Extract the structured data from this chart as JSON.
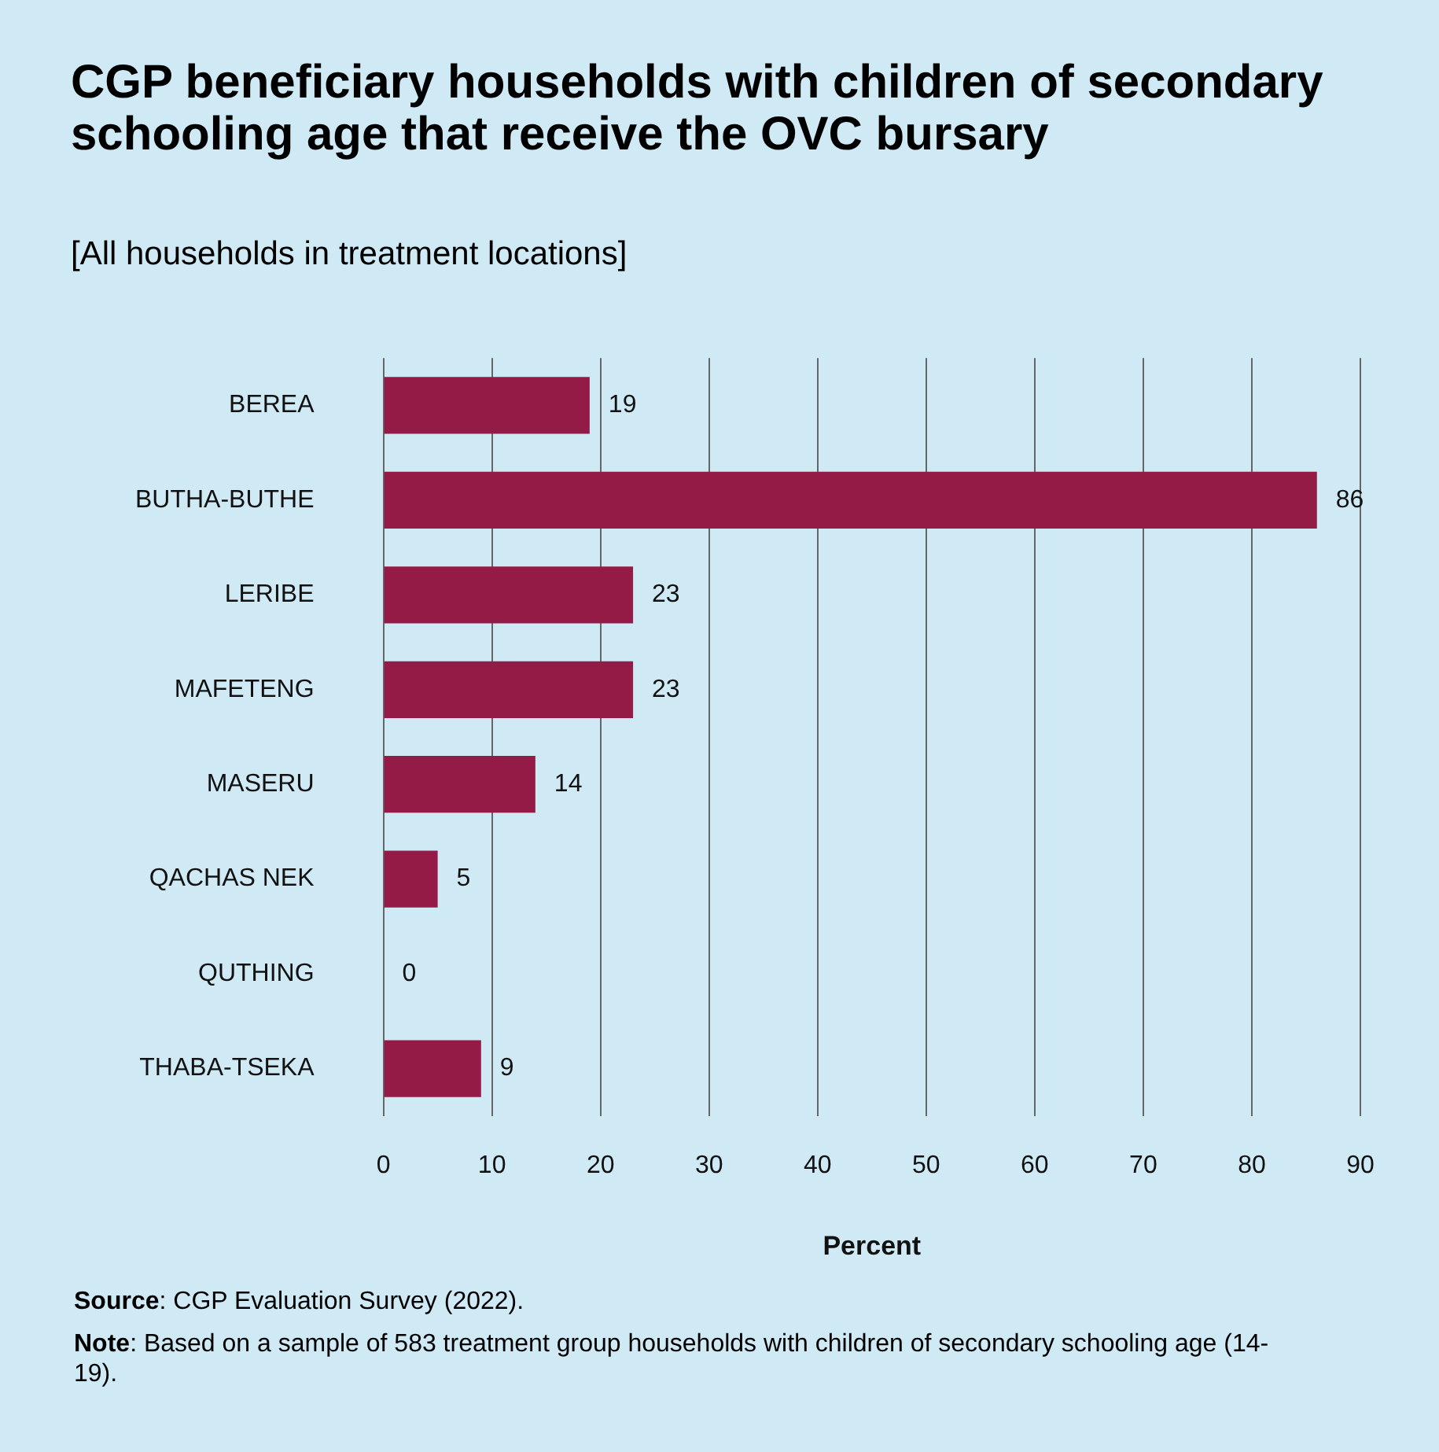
{
  "chart_data": {
    "type": "bar",
    "orientation": "horizontal",
    "title": "CGP beneficiary households with children of secondary schooling age that receive the OVC bursary",
    "subtitle": "[All households in treatment locations]",
    "categories": [
      "BEREA",
      "BUTHA-BUTHE",
      "LERIBE",
      "MAFETENG",
      "MASERU",
      "QACHAS NEK",
      "QUTHING",
      "THABA-TSEKA"
    ],
    "values": [
      19,
      86,
      23,
      23,
      14,
      5,
      0,
      9
    ],
    "color": "#951b47",
    "xlabel": "Percent",
    "xlim": [
      0,
      90
    ],
    "xticks": [
      0,
      10,
      20,
      30,
      40,
      50,
      60,
      70,
      80,
      90
    ],
    "grid": "x",
    "data_labels": true,
    "legend": false,
    "annotations": [
      "Source: CGP Evaluation Survey (2022).",
      "Note: Based on a sample of 583 treatment group households with children of secondary schooling age (14-19)."
    ]
  }
}
